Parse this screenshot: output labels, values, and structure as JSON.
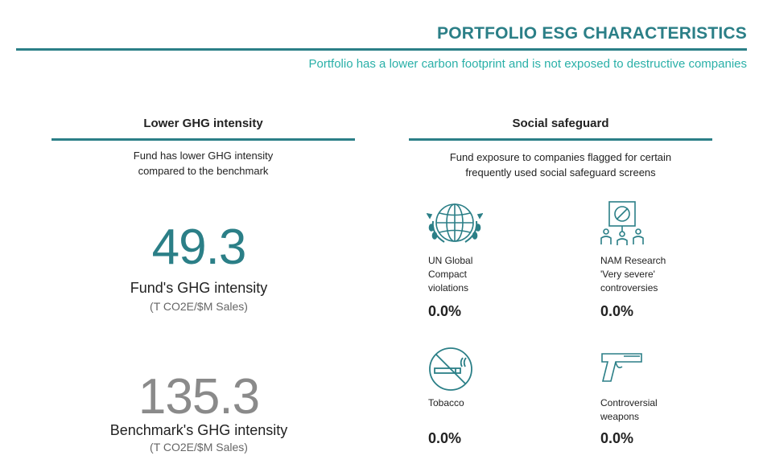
{
  "header": {
    "title": "PORTFOLIO ESG CHARACTERISTICS",
    "subtitle": "Portfolio has a lower carbon footprint and is not exposed to destructive companies"
  },
  "ghg": {
    "title": "Lower GHG intensity",
    "description": "Fund has lower GHG intensity\ncompared to  the benchmark",
    "fund": {
      "value": "49.3",
      "label": "Fund's GHG intensity",
      "unit": "(T CO2E/$M Sales)"
    },
    "benchmark": {
      "value": "135.3",
      "label": "Benchmark's GHG intensity",
      "unit": "(T CO2E/$M Sales)"
    }
  },
  "social": {
    "title": "Social safeguard",
    "description": "Fund exposure to companies flagged for certain\nfrequently used social safeguard screens",
    "items": [
      {
        "icon": "globe-laurel-icon",
        "label": "UN Global\nCompact\nviolations",
        "value": "0.0%"
      },
      {
        "icon": "protest-sign-icon",
        "label": "NAM Research\n'Very severe'\ncontroversies",
        "value": "0.0%"
      },
      {
        "icon": "no-smoking-icon",
        "label": "Tobacco",
        "value": "0.0%"
      },
      {
        "icon": "pistol-icon",
        "label": "Controversial\nweapons",
        "value": "0.0%"
      }
    ]
  },
  "colors": {
    "accent": "#2b7f87",
    "subtitle": "#2ab0a8",
    "fund_number": "#2b7f87",
    "benchmark_number": "#8a8a8a"
  }
}
